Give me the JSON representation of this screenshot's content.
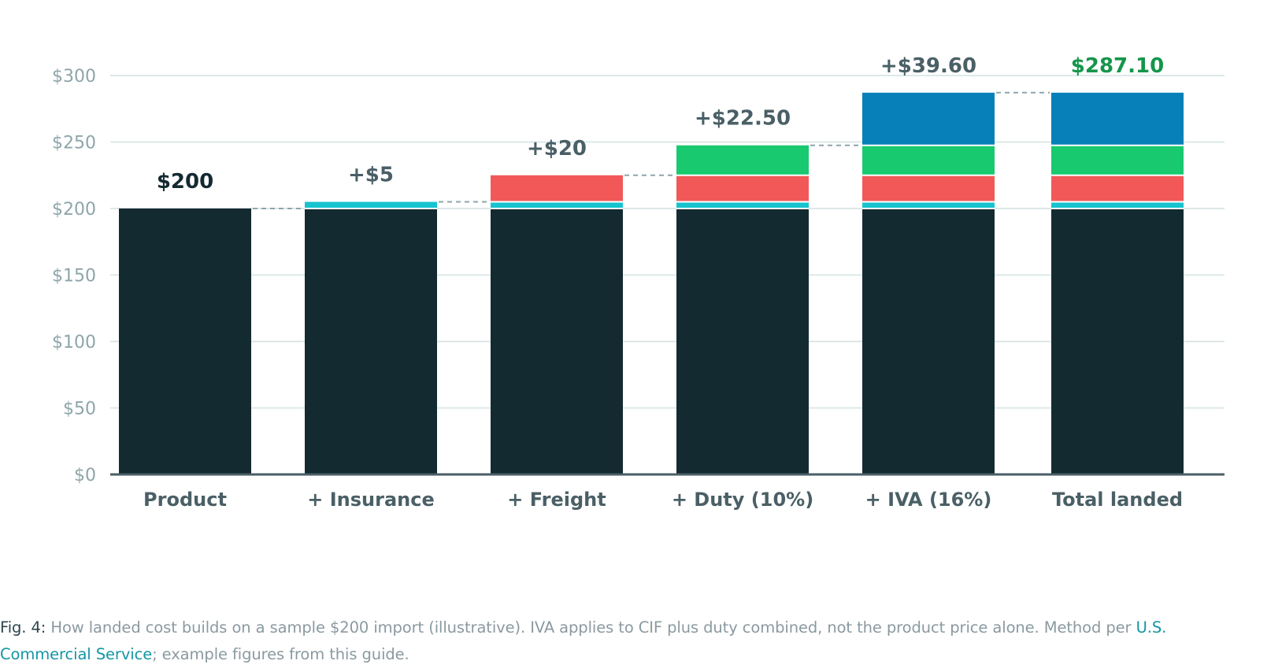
{
  "chart_data": {
    "type": "bar",
    "subtype": "stacked-waterfall",
    "categories": [
      "Product",
      "+ Insurance",
      "+ Freight",
      "+ Duty (10%)",
      "+ IVA (16%)",
      "Total landed"
    ],
    "series": [
      {
        "key": "product",
        "values": [
          200,
          200,
          200,
          200,
          200,
          200
        ],
        "color": "#142a31"
      },
      {
        "key": "insurance",
        "values": [
          0,
          5,
          5,
          5,
          5,
          5
        ],
        "color": "#17c3cf"
      },
      {
        "key": "freight",
        "values": [
          0,
          0,
          20,
          20,
          20,
          20
        ],
        "color": "#f25858"
      },
      {
        "key": "duty",
        "values": [
          0,
          0,
          0,
          22.5,
          22.5,
          22.5
        ],
        "color": "#18c96f"
      },
      {
        "key": "iva",
        "values": [
          0,
          0,
          0,
          0,
          39.6,
          39.6
        ],
        "color": "#0780b9"
      }
    ],
    "bar_totals": [
      200,
      205,
      225,
      247.5,
      287.1,
      287.1
    ],
    "value_labels": [
      "$200",
      "+$5",
      "+$20",
      "+$22.50",
      "+$39.60",
      "$287.10"
    ],
    "value_label_colors": [
      "#142a31",
      "#4a5f66",
      "#4a5f66",
      "#4a5f66",
      "#4a5f66",
      "#14964a"
    ],
    "y_ticks": [
      0,
      50,
      100,
      150,
      200,
      250,
      300
    ],
    "y_tick_labels": [
      "$0",
      "$50",
      "$100",
      "$150",
      "$200",
      "$250",
      "$300"
    ],
    "ylim": [
      0,
      300
    ],
    "grid": true,
    "connector_lines": true,
    "title": "",
    "xlabel": "",
    "ylabel": ""
  },
  "caption": {
    "fig_label": "Fig. 4:",
    "text": " How landed cost builds on a sample $200 import (illustrative). IVA applies to CIF plus duty combined, not the product price alone. Method per ",
    "link_text": "U.S. Commercial Service",
    "tail": "; example figures from this guide."
  },
  "colors": {
    "grid": "#dde8e8",
    "axis": "#4a5f66",
    "tick_label": "#8ea5aa",
    "category_label": "#4a5f66",
    "connector": "#8ea5aa"
  }
}
